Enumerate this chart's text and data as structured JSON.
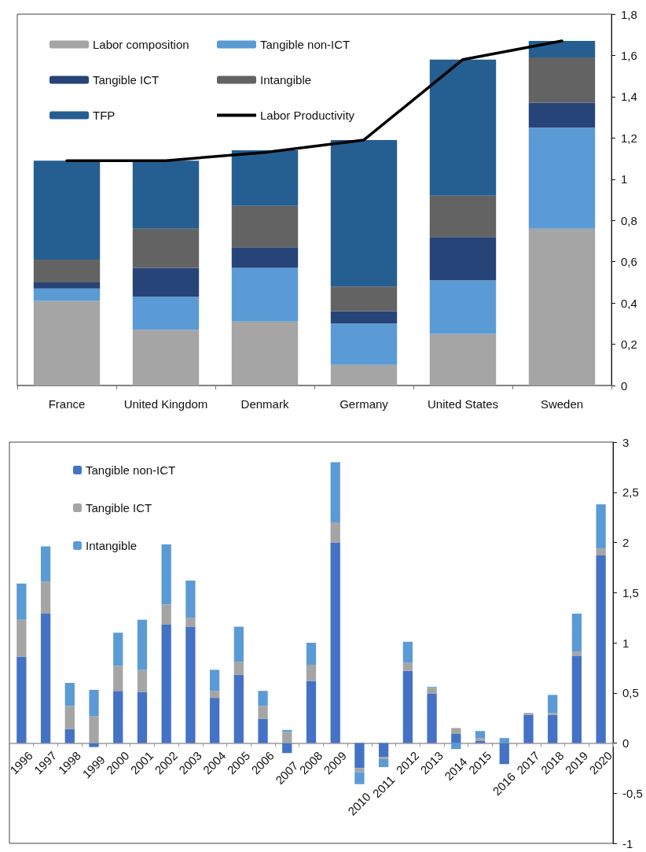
{
  "chart_data": [
    {
      "type": "bar",
      "stacked": true,
      "categories": [
        "France",
        "United Kingdom",
        "Denmark",
        "Germany",
        "United States",
        "Sweden"
      ],
      "series": [
        {
          "name": "Labor composition",
          "color": "#a5a5a5",
          "values": [
            0.41,
            0.27,
            0.31,
            0.1,
            0.25,
            0.76
          ]
        },
        {
          "name": "Tangible non-ICT",
          "color": "#5b9bd5",
          "values": [
            0.06,
            0.16,
            0.26,
            0.2,
            0.26,
            0.49
          ]
        },
        {
          "name": "Tangible ICT",
          "color": "#264478",
          "values": [
            0.03,
            0.14,
            0.1,
            0.06,
            0.21,
            0.12
          ]
        },
        {
          "name": "Intangible",
          "color": "#636363",
          "values": [
            0.11,
            0.19,
            0.2,
            0.12,
            0.2,
            0.22
          ]
        },
        {
          "name": "TFP",
          "color": "#255e91",
          "values": [
            0.48,
            0.33,
            0.27,
            0.71,
            0.66,
            0.08
          ]
        },
        {
          "name": "Labor Productivity",
          "type": "line",
          "color": "#000000",
          "values": [
            1.09,
            1.09,
            1.13,
            1.19,
            1.58,
            1.67
          ]
        }
      ],
      "ylim": [
        0,
        1.8
      ],
      "yticks": [
        0,
        {
          "value": 0.2,
          "label": "0,2"
        },
        {
          "value": 0.4,
          "label": "0,4"
        },
        {
          "value": 0.6,
          "label": "0,6"
        },
        {
          "value": 0.8,
          "label": "0,8"
        },
        1,
        {
          "value": 1.2,
          "label": "1,2"
        },
        {
          "value": 1.4,
          "label": "1,4"
        },
        {
          "value": 1.6,
          "label": "1,6"
        },
        {
          "value": 1.8,
          "label": "1,8"
        }
      ],
      "grid": false,
      "legend": "top left",
      "marker": "none",
      "line_style": "solid"
    },
    {
      "type": "bar",
      "stacked": true,
      "categories": [
        "1996",
        "1997",
        "1998",
        "1999",
        "2000",
        "2001",
        "2002",
        "2003",
        "2004",
        "2005",
        "2006",
        "2007",
        "2008",
        "2009",
        "2010",
        "2011",
        "2012",
        "2013",
        "2014",
        "2015",
        "2016",
        "2017",
        "2018",
        "2019",
        "2020"
      ],
      "series": [
        {
          "name": "Tangible non-ICT",
          "color": "#4472c4",
          "values": [
            0.86,
            1.29,
            0.14,
            -0.04,
            0.52,
            0.51,
            1.18,
            1.16,
            0.45,
            0.68,
            0.24,
            -0.1,
            0.62,
            2.0,
            -0.25,
            -0.14,
            0.72,
            0.49,
            0.09,
            0.02,
            -0.21,
            0.28,
            0.28,
            0.87,
            1.87
          ]
        },
        {
          "name": "Tangible ICT",
          "color": "#a5a5a5",
          "values": [
            0.37,
            0.32,
            0.23,
            0.27,
            0.25,
            0.22,
            0.2,
            0.09,
            0.07,
            0.13,
            0.13,
            0.11,
            0.16,
            0.2,
            -0.04,
            -0.02,
            0.08,
            0.06,
            0.06,
            0.03,
            null,
            0.02,
            0.02,
            0.04,
            0.07
          ]
        },
        {
          "name": "Intangible",
          "color": "#5b9bd5",
          "values": [
            0.36,
            0.35,
            0.23,
            0.26,
            0.33,
            0.5,
            0.6,
            0.37,
            0.21,
            0.35,
            0.15,
            0.02,
            0.22,
            0.6,
            -0.12,
            -0.08,
            0.21,
            0.01,
            -0.06,
            0.07,
            0.05,
            0,
            0.18,
            0.38,
            0.44
          ]
        }
      ],
      "ylim": [
        -1,
        3
      ],
      "yticks": [
        -1,
        {
          "value": -0.5,
          "label": "-0,5"
        },
        0,
        {
          "value": 0.5,
          "label": "0,5"
        },
        1,
        {
          "value": 1.5,
          "label": "1,5"
        },
        2,
        {
          "value": 2.5,
          "label": "2,5"
        },
        3
      ],
      "grid": false,
      "legend": "top left"
    }
  ]
}
